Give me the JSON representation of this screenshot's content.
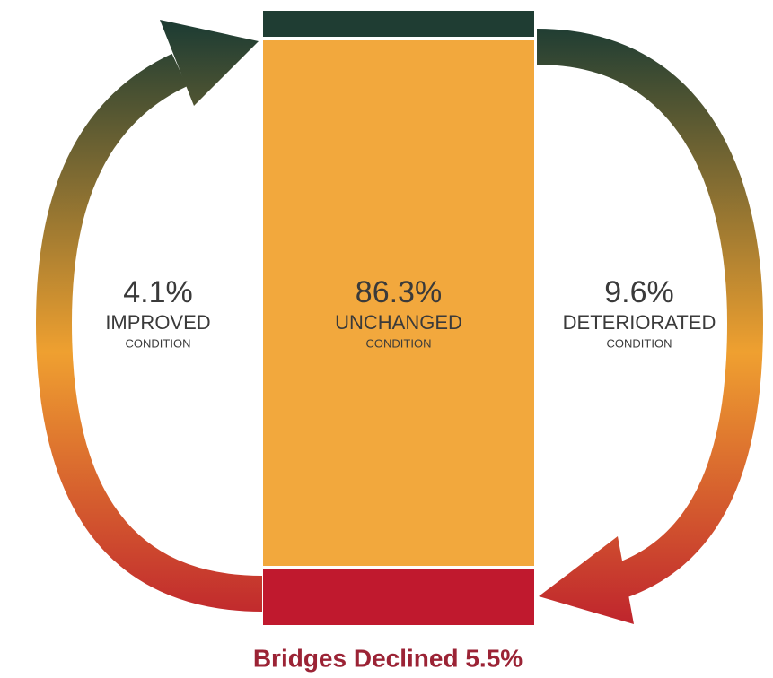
{
  "left": {
    "percent": "4.1%",
    "label": "IMPROVED",
    "sub": "CONDITION"
  },
  "center": {
    "percent": "86.3%",
    "label": "UNCHANGED",
    "sub": "CONDITION"
  },
  "right": {
    "percent": "9.6%",
    "label": "DETERIORATED",
    "sub": "CONDITION"
  },
  "footer": "Bridges Declined 5.5%"
}
